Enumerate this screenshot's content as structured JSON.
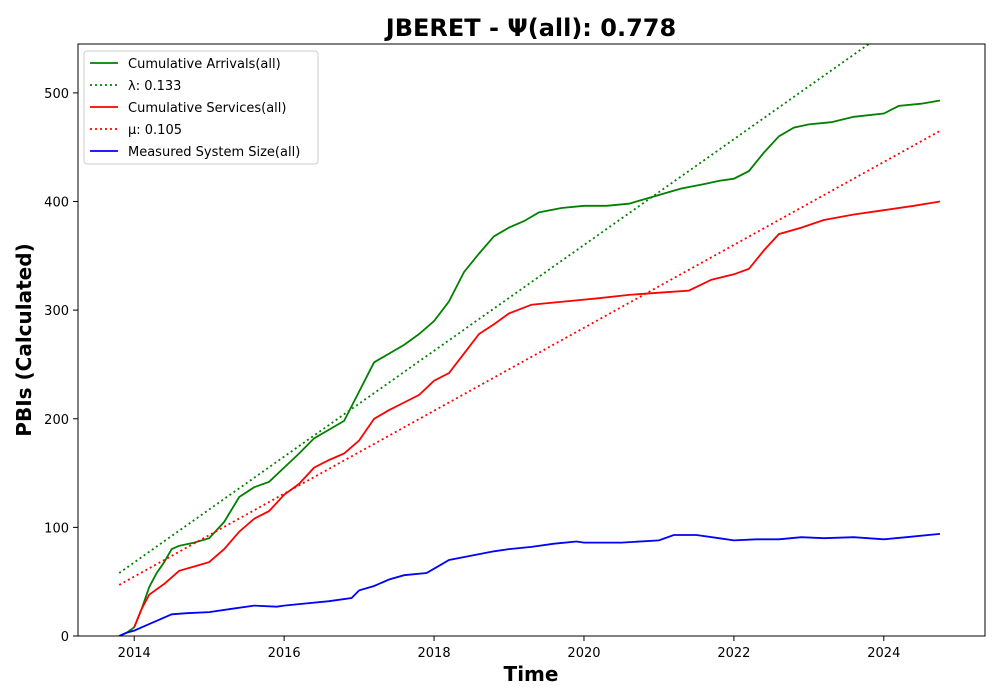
{
  "chart_data": {
    "type": "line",
    "title": "JBERET -  Ψ(all): 0.778",
    "xlabel": "Time",
    "ylabel": "PBIs (Calculated)",
    "xlim": [
      2013.25,
      2025.35
    ],
    "ylim": [
      0,
      545
    ],
    "x_ticks": [
      2014,
      2016,
      2018,
      2020,
      2022,
      2024
    ],
    "y_ticks": [
      0,
      100,
      200,
      300,
      400,
      500
    ],
    "grid": false,
    "legend_position": "top-left",
    "series": [
      {
        "name": "Cumulative Arrivals(all)",
        "color": "#008000",
        "style": "solid",
        "points": [
          [
            2013.8,
            0
          ],
          [
            2013.9,
            3
          ],
          [
            2014.0,
            8
          ],
          [
            2014.1,
            25
          ],
          [
            2014.2,
            45
          ],
          [
            2014.3,
            58
          ],
          [
            2014.4,
            68
          ],
          [
            2014.5,
            80
          ],
          [
            2014.6,
            83
          ],
          [
            2014.8,
            86
          ],
          [
            2015.0,
            90
          ],
          [
            2015.2,
            105
          ],
          [
            2015.4,
            128
          ],
          [
            2015.6,
            137
          ],
          [
            2015.8,
            142
          ],
          [
            2016.0,
            155
          ],
          [
            2016.2,
            168
          ],
          [
            2016.4,
            182
          ],
          [
            2016.6,
            190
          ],
          [
            2016.8,
            198
          ],
          [
            2017.0,
            225
          ],
          [
            2017.2,
            252
          ],
          [
            2017.4,
            260
          ],
          [
            2017.6,
            268
          ],
          [
            2017.8,
            278
          ],
          [
            2018.0,
            290
          ],
          [
            2018.2,
            308
          ],
          [
            2018.4,
            335
          ],
          [
            2018.6,
            352
          ],
          [
            2018.8,
            368
          ],
          [
            2019.0,
            376
          ],
          [
            2019.2,
            382
          ],
          [
            2019.4,
            390
          ],
          [
            2019.7,
            394
          ],
          [
            2020.0,
            396
          ],
          [
            2020.3,
            396
          ],
          [
            2020.6,
            398
          ],
          [
            2021.0,
            406
          ],
          [
            2021.3,
            412
          ],
          [
            2021.6,
            416
          ],
          [
            2021.8,
            419
          ],
          [
            2022.0,
            421
          ],
          [
            2022.2,
            428
          ],
          [
            2022.4,
            445
          ],
          [
            2022.6,
            460
          ],
          [
            2022.8,
            468
          ],
          [
            2023.0,
            471
          ],
          [
            2023.3,
            473
          ],
          [
            2023.6,
            478
          ],
          [
            2024.0,
            481
          ],
          [
            2024.2,
            488
          ],
          [
            2024.5,
            490
          ],
          [
            2024.75,
            493
          ]
        ]
      },
      {
        "name": "λ: 0.133",
        "color": "#008000",
        "style": "dotted",
        "points": [
          [
            2013.8,
            58
          ],
          [
            2023.8,
            545
          ]
        ]
      },
      {
        "name": "Cumulative Services(all)",
        "color": "#ff0000",
        "style": "solid",
        "points": [
          [
            2014.0,
            8
          ],
          [
            2014.1,
            25
          ],
          [
            2014.2,
            38
          ],
          [
            2014.4,
            48
          ],
          [
            2014.6,
            60
          ],
          [
            2014.8,
            64
          ],
          [
            2015.0,
            68
          ],
          [
            2015.2,
            80
          ],
          [
            2015.4,
            96
          ],
          [
            2015.6,
            108
          ],
          [
            2015.8,
            115
          ],
          [
            2016.0,
            130
          ],
          [
            2016.2,
            140
          ],
          [
            2016.4,
            155
          ],
          [
            2016.6,
            162
          ],
          [
            2016.8,
            168
          ],
          [
            2017.0,
            180
          ],
          [
            2017.2,
            200
          ],
          [
            2017.4,
            208
          ],
          [
            2017.6,
            215
          ],
          [
            2017.8,
            222
          ],
          [
            2018.0,
            235
          ],
          [
            2018.2,
            242
          ],
          [
            2018.4,
            260
          ],
          [
            2018.6,
            278
          ],
          [
            2018.8,
            287
          ],
          [
            2019.0,
            297
          ],
          [
            2019.3,
            305
          ],
          [
            2019.6,
            307
          ],
          [
            2019.9,
            309
          ],
          [
            2020.2,
            311
          ],
          [
            2020.6,
            314
          ],
          [
            2021.0,
            316
          ],
          [
            2021.4,
            318
          ],
          [
            2021.7,
            328
          ],
          [
            2022.0,
            333
          ],
          [
            2022.2,
            338
          ],
          [
            2022.4,
            355
          ],
          [
            2022.6,
            370
          ],
          [
            2022.9,
            376
          ],
          [
            2023.2,
            383
          ],
          [
            2023.6,
            388
          ],
          [
            2024.0,
            392
          ],
          [
            2024.4,
            396
          ],
          [
            2024.75,
            400
          ]
        ]
      },
      {
        "name": "μ: 0.105",
        "color": "#ff0000",
        "style": "dotted",
        "points": [
          [
            2013.8,
            47
          ],
          [
            2024.75,
            465
          ]
        ]
      },
      {
        "name": "Measured System Size(all)",
        "color": "#0000ff",
        "style": "solid",
        "points": [
          [
            2013.8,
            0
          ],
          [
            2013.9,
            3
          ],
          [
            2014.0,
            5
          ],
          [
            2014.1,
            8
          ],
          [
            2014.3,
            14
          ],
          [
            2014.5,
            20
          ],
          [
            2014.7,
            21
          ],
          [
            2015.0,
            22
          ],
          [
            2015.3,
            25
          ],
          [
            2015.6,
            28
          ],
          [
            2015.9,
            27
          ],
          [
            2016.0,
            28
          ],
          [
            2016.3,
            30
          ],
          [
            2016.6,
            32
          ],
          [
            2016.9,
            35
          ],
          [
            2017.0,
            42
          ],
          [
            2017.2,
            46
          ],
          [
            2017.4,
            52
          ],
          [
            2017.6,
            56
          ],
          [
            2017.9,
            58
          ],
          [
            2018.0,
            62
          ],
          [
            2018.2,
            70
          ],
          [
            2018.5,
            74
          ],
          [
            2018.8,
            78
          ],
          [
            2019.0,
            80
          ],
          [
            2019.3,
            82
          ],
          [
            2019.6,
            85
          ],
          [
            2019.9,
            87
          ],
          [
            2020.0,
            86
          ],
          [
            2020.5,
            86
          ],
          [
            2021.0,
            88
          ],
          [
            2021.2,
            93
          ],
          [
            2021.5,
            93
          ],
          [
            2021.8,
            90
          ],
          [
            2022.0,
            88
          ],
          [
            2022.3,
            89
          ],
          [
            2022.6,
            89
          ],
          [
            2022.9,
            91
          ],
          [
            2023.2,
            90
          ],
          [
            2023.6,
            91
          ],
          [
            2024.0,
            89
          ],
          [
            2024.3,
            91
          ],
          [
            2024.75,
            94
          ]
        ]
      }
    ]
  }
}
